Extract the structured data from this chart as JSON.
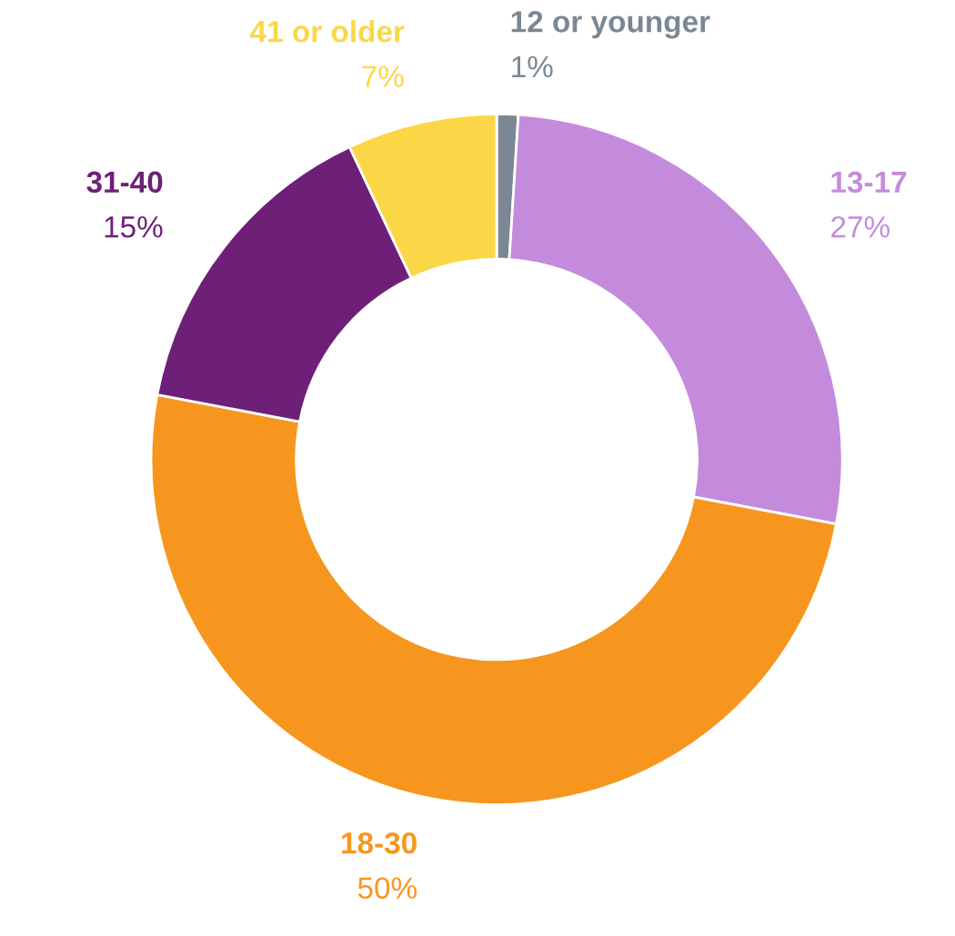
{
  "chart_data": {
    "type": "donut",
    "categories": [
      "12 or younger",
      "13-17",
      "18-30",
      "31-40",
      "41 or older"
    ],
    "values": [
      1,
      27,
      50,
      15,
      7
    ],
    "value_labels": [
      "1%",
      "27%",
      "50%",
      "15%",
      "7%"
    ],
    "colors": [
      "#7b8893",
      "#c48bdc",
      "#f7961e",
      "#6e2079",
      "#fbd748"
    ]
  }
}
